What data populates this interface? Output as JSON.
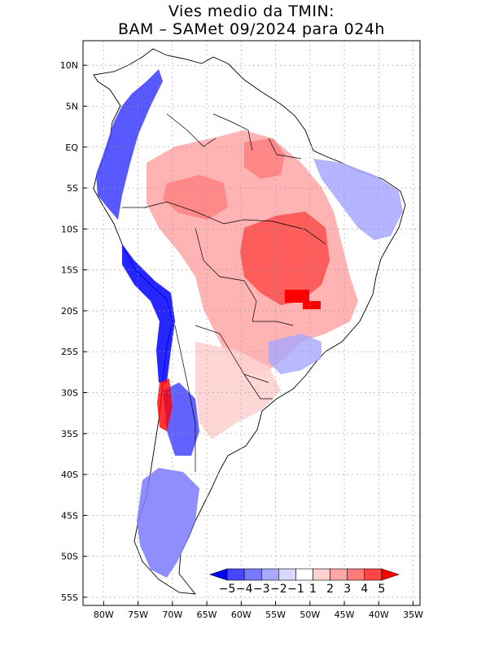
{
  "title": {
    "line1": "Vies medio da TMIN:",
    "line2": "BAM – SAMet 09/2024  para 024h"
  },
  "axes": {
    "lon_labels": [
      "80W",
      "75W",
      "70W",
      "65W",
      "60W",
      "55W",
      "50W",
      "45W",
      "40W",
      "35W"
    ],
    "lat_labels": [
      "10N",
      "5N",
      "EQ",
      "5S",
      "10S",
      "15S",
      "20S",
      "25S",
      "30S",
      "35S",
      "40S",
      "45S",
      "50S",
      "55S"
    ],
    "lon_range": [
      -83,
      -34
    ],
    "lat_range": [
      -56,
      13
    ]
  },
  "colorbar": {
    "labels": [
      "−5",
      "−4",
      "−3",
      "−2",
      "−1",
      "1",
      "2",
      "3",
      "4",
      "5"
    ],
    "colors": [
      "#0000ff",
      "#4646ff",
      "#7a7aff",
      "#a8a8ff",
      "#d8d8ff",
      "#ffffff",
      "#ffd2d2",
      "#ffa6a6",
      "#ff7a7a",
      "#ff4646",
      "#ff0000"
    ]
  },
  "colors": {
    "land_neutral": "#ffffff",
    "border": "#000000",
    "grid": "#9a9a9a"
  }
}
